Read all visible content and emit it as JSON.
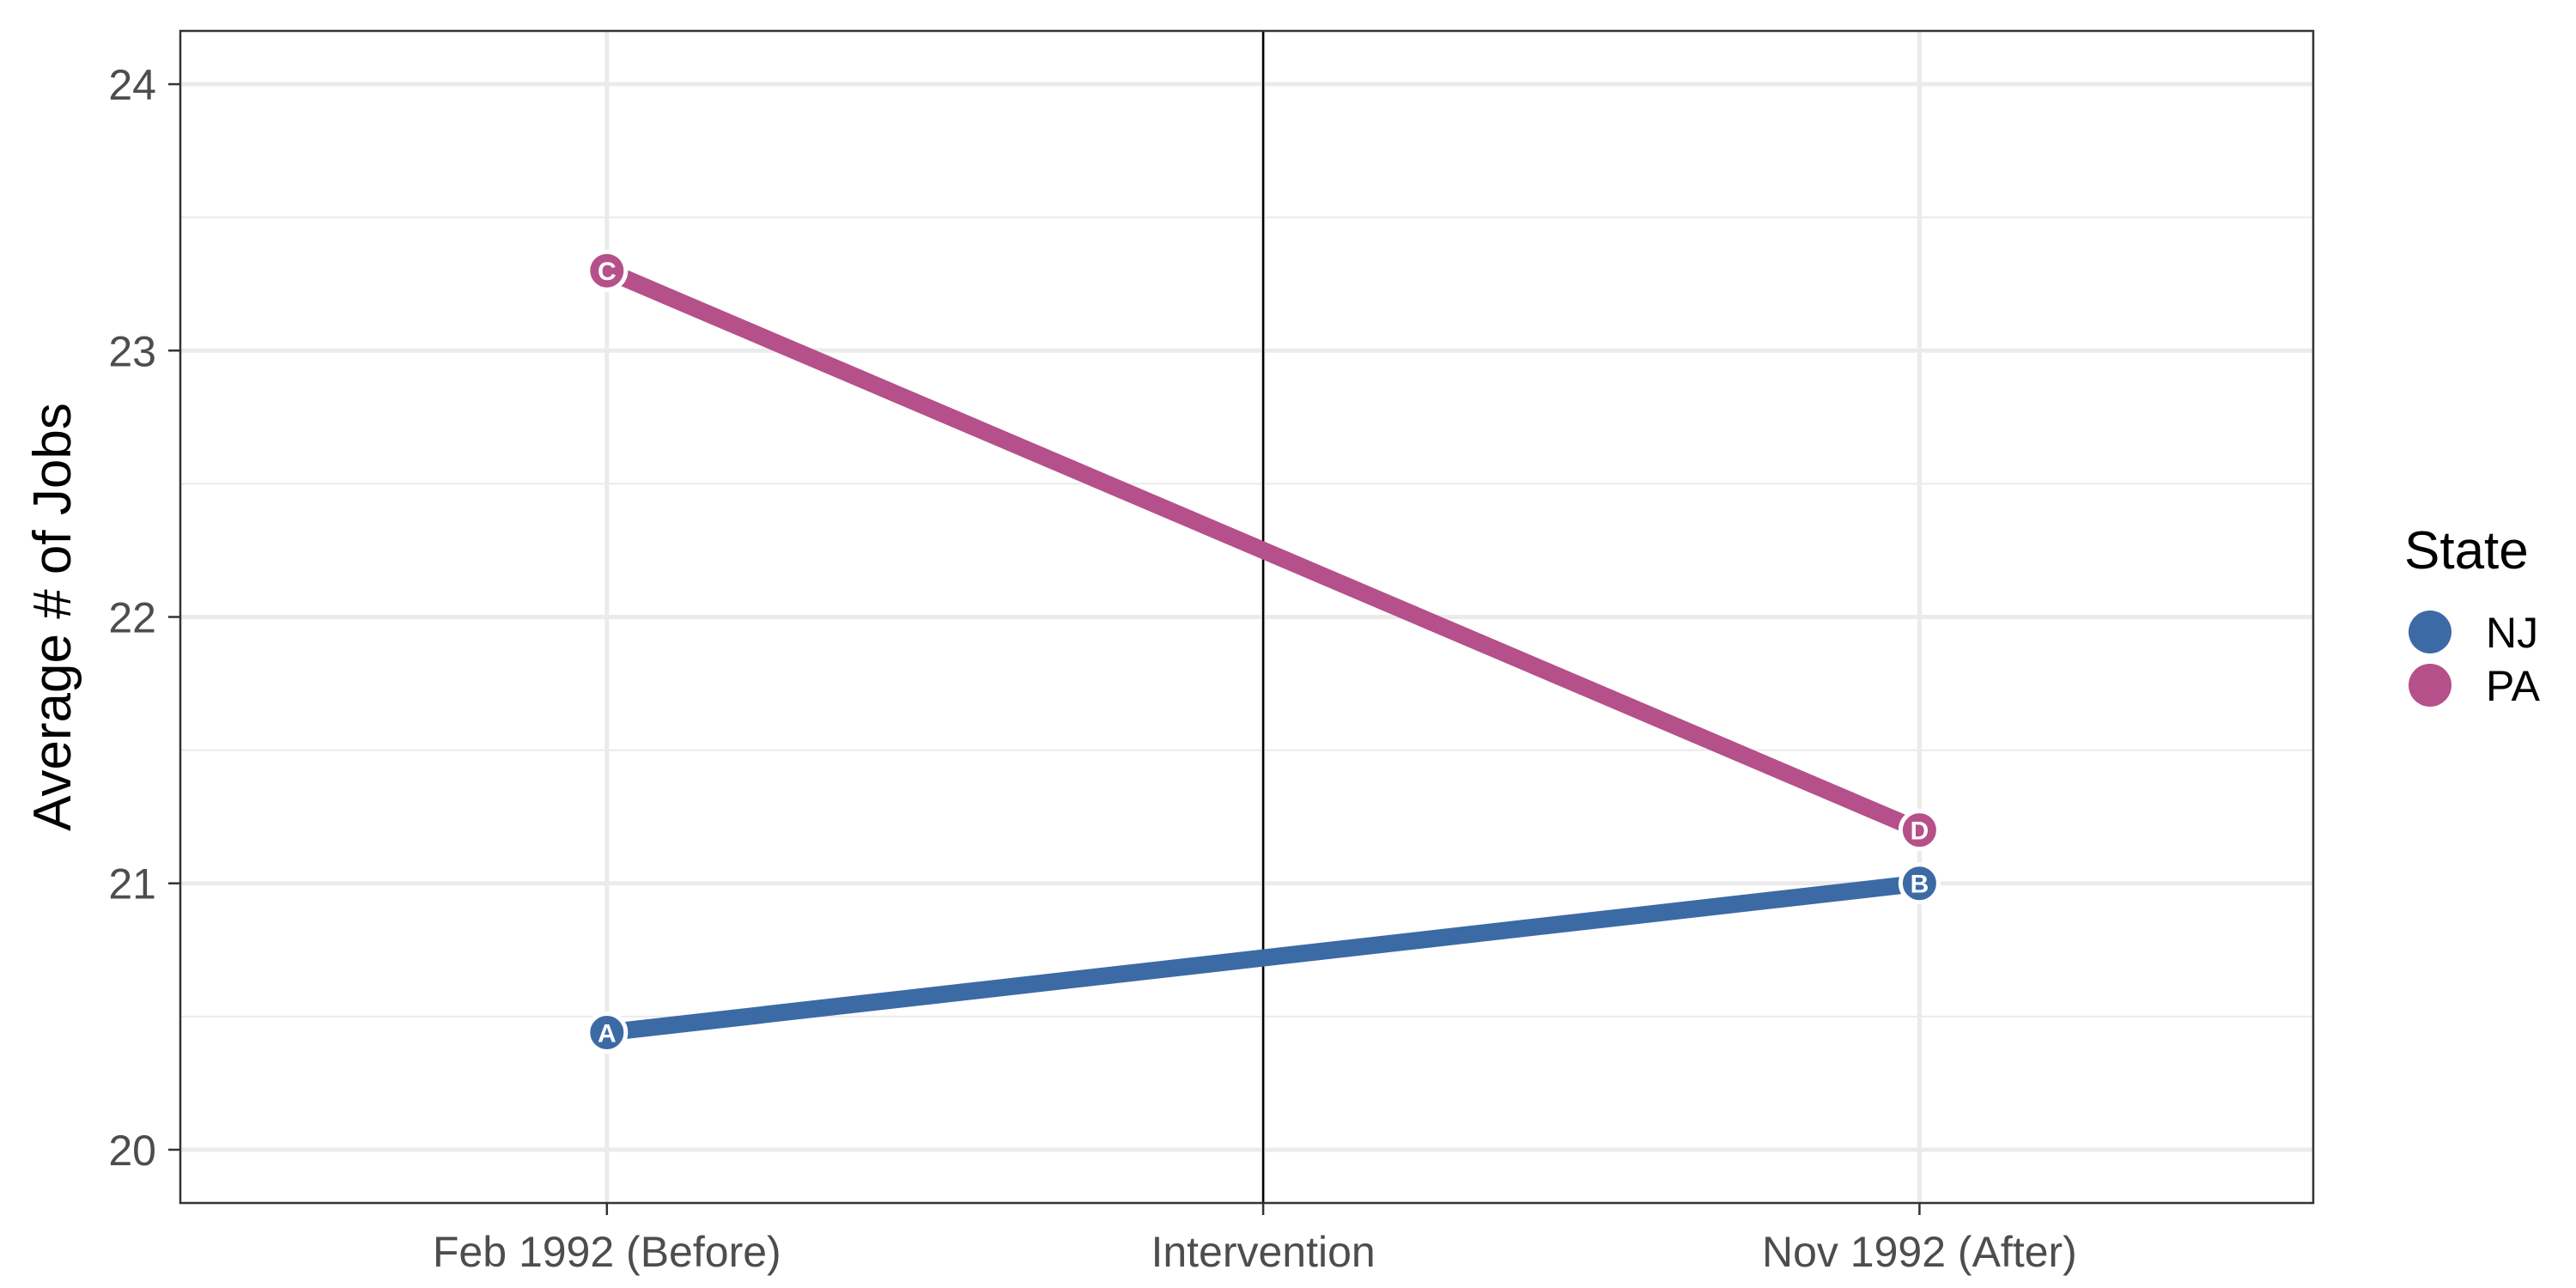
{
  "chart_data": {
    "type": "line",
    "categories": [
      "Feb 1992 (Before)",
      "Intervention",
      "Nov 1992 (After)"
    ],
    "x_positions": [
      1,
      2,
      3
    ],
    "xlim": [
      0.35,
      3.6
    ],
    "ylabel": "Average # of Jobs",
    "ylim": [
      19.8,
      24.2
    ],
    "yticks": [
      20,
      21,
      22,
      23,
      24
    ],
    "grid": true,
    "intervention_line": {
      "x": 2,
      "label": "Intervention"
    },
    "legend": {
      "title": "State",
      "position": "right"
    },
    "series": [
      {
        "name": "NJ",
        "color": "#3c6aa5",
        "points": [
          {
            "x": 1,
            "y": 20.44,
            "label": "A"
          },
          {
            "x": 3,
            "y": 21.0,
            "label": "B"
          }
        ]
      },
      {
        "name": "PA",
        "color": "#b5508a",
        "points": [
          {
            "x": 1,
            "y": 23.3,
            "label": "C"
          },
          {
            "x": 3,
            "y": 21.2,
            "label": "D"
          }
        ]
      }
    ]
  }
}
